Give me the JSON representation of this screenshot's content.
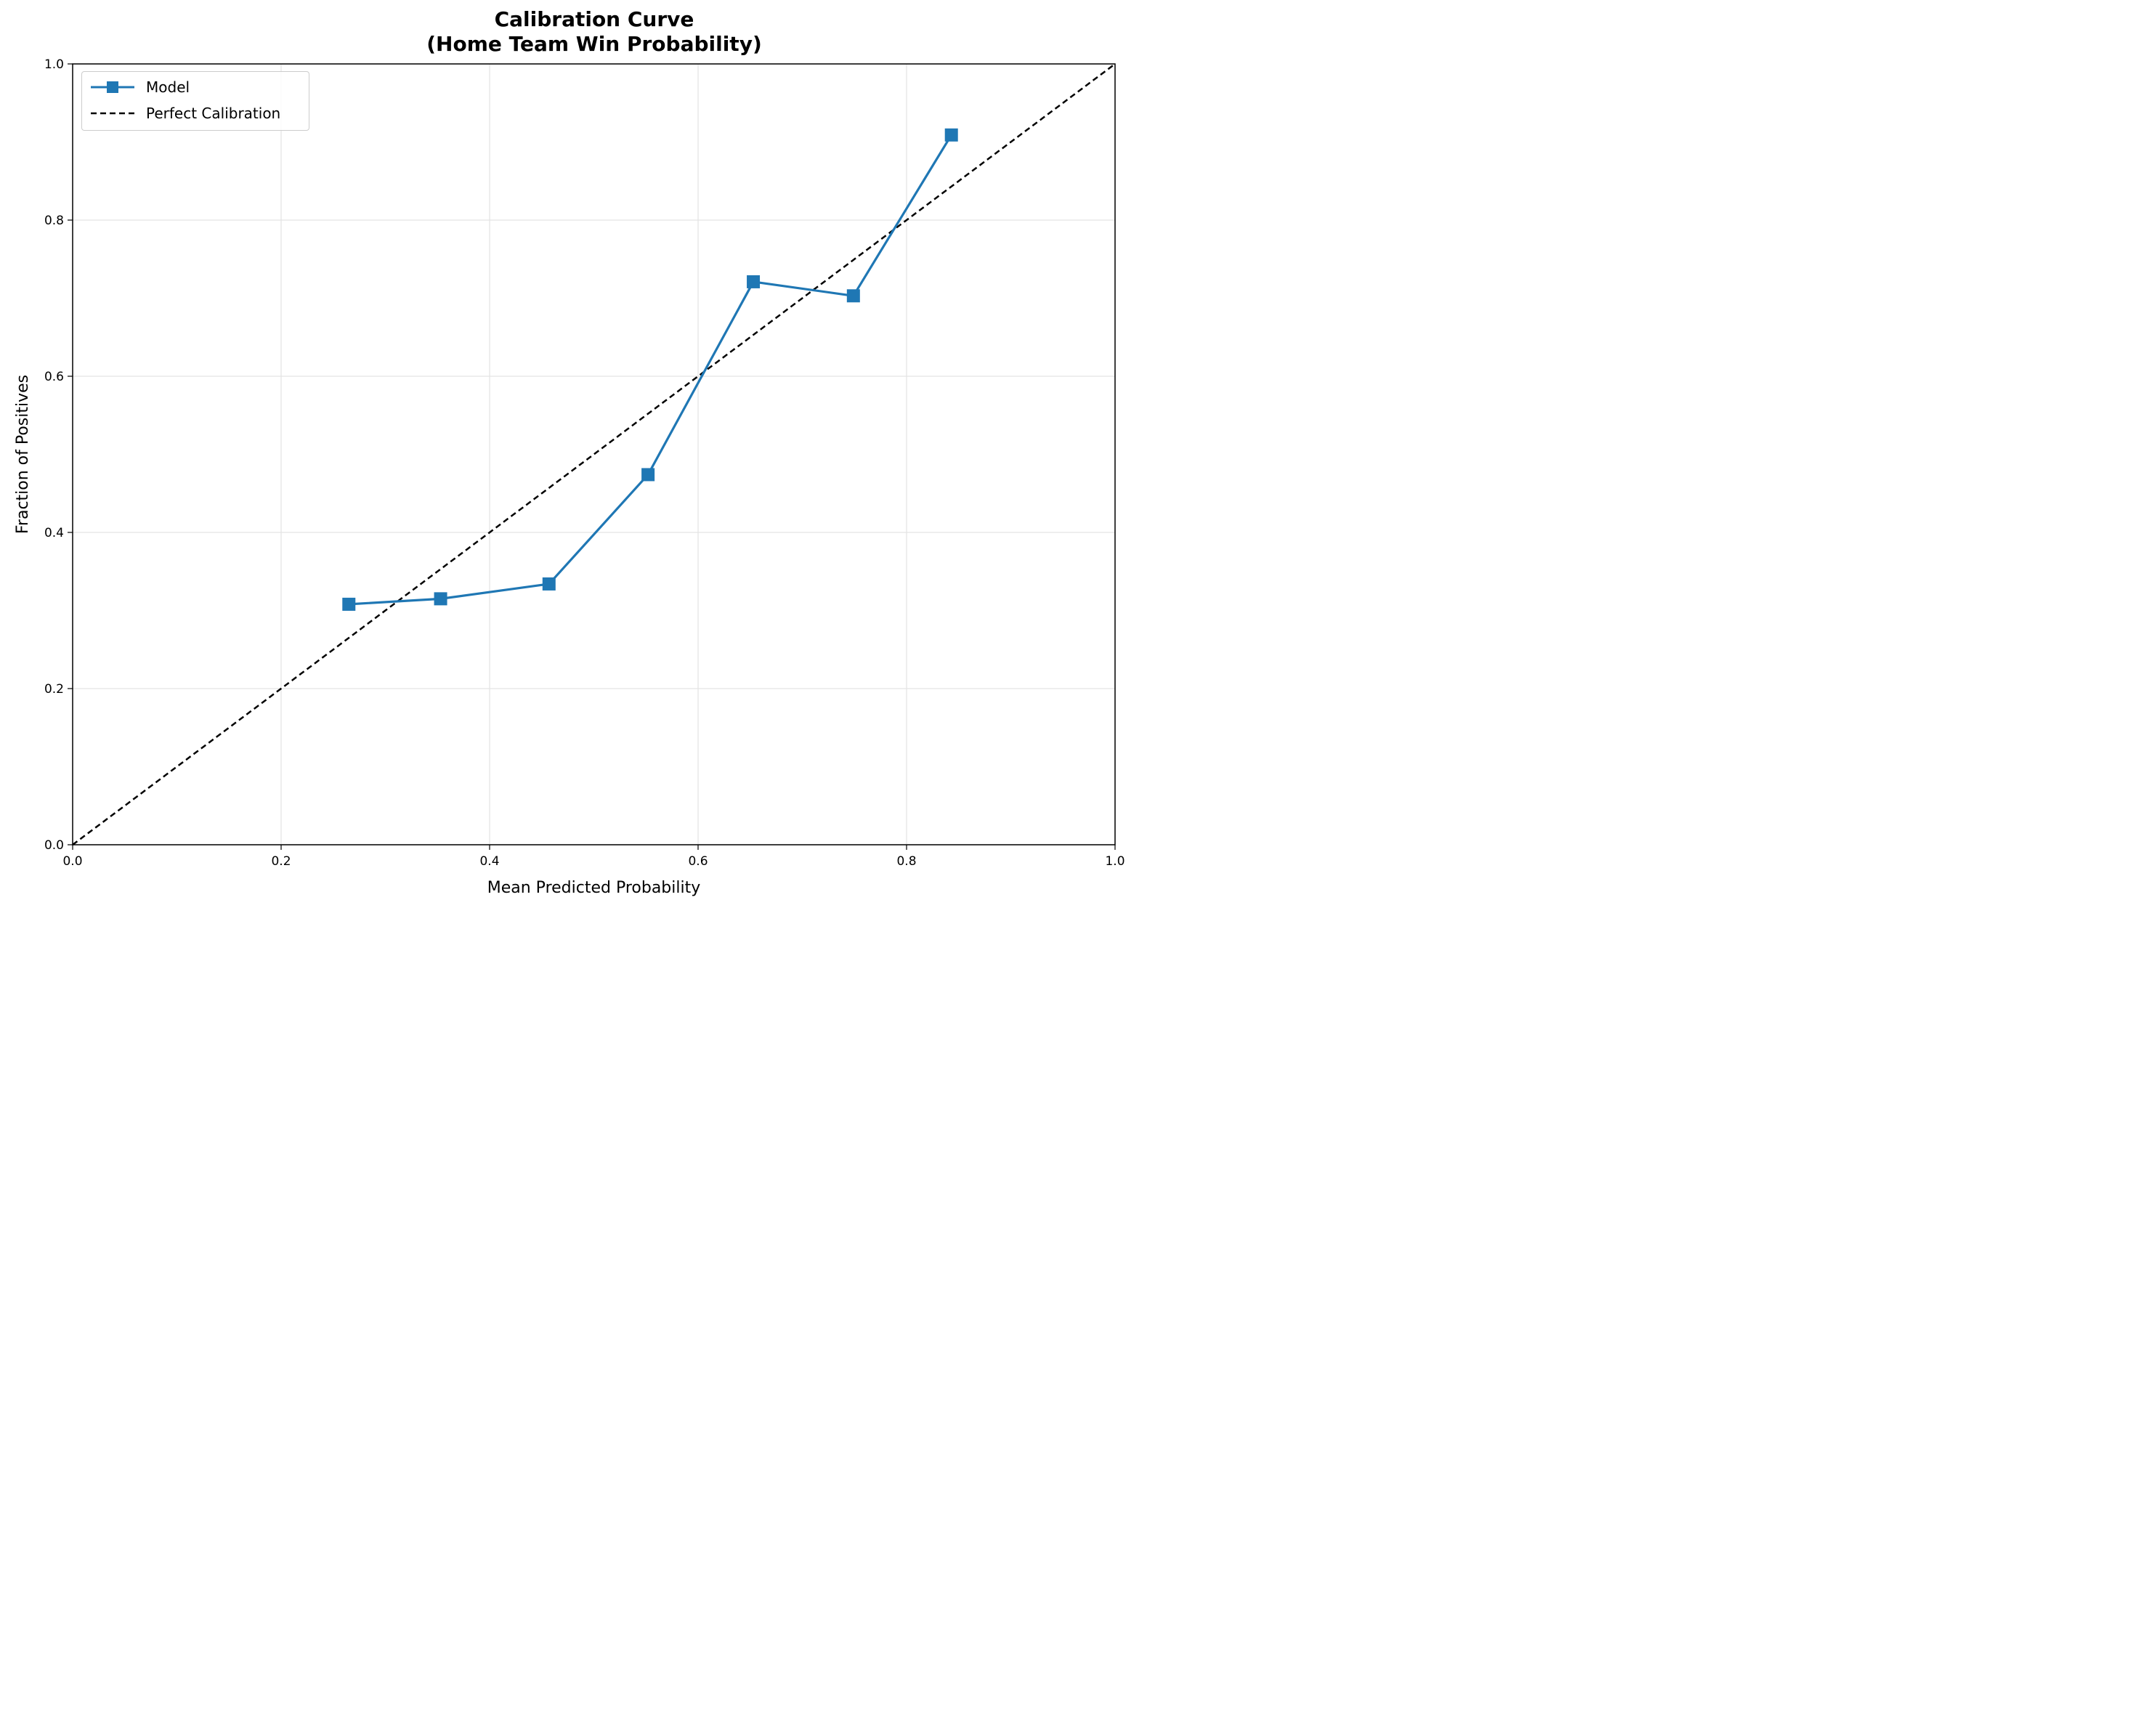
{
  "chart_data": {
    "type": "line",
    "title": "Calibration Curve",
    "subtitle": "(Home Team Win Probability)",
    "xlabel": "Mean Predicted Probability",
    "ylabel": "Fraction of Positives",
    "xlim": [
      0.0,
      1.0
    ],
    "ylim": [
      0.0,
      1.0
    ],
    "xticks": [
      "0.0",
      "0.2",
      "0.4",
      "0.6",
      "0.8",
      "1.0"
    ],
    "yticks": [
      "0.0",
      "0.2",
      "0.4",
      "0.6",
      "0.8",
      "1.0"
    ],
    "grid": true,
    "legend_position": "top-left",
    "series": [
      {
        "name": "Model",
        "color": "#1f77b4",
        "marker": "square",
        "style": "solid",
        "x": [
          0.265,
          0.353,
          0.457,
          0.552,
          0.653,
          0.749,
          0.843
        ],
        "y": [
          0.308,
          0.315,
          0.334,
          0.474,
          0.721,
          0.703,
          0.909
        ]
      },
      {
        "name": "Perfect Calibration",
        "color": "#000000",
        "style": "dashed",
        "x": [
          0.0,
          1.0
        ],
        "y": [
          0.0,
          1.0
        ]
      }
    ]
  }
}
